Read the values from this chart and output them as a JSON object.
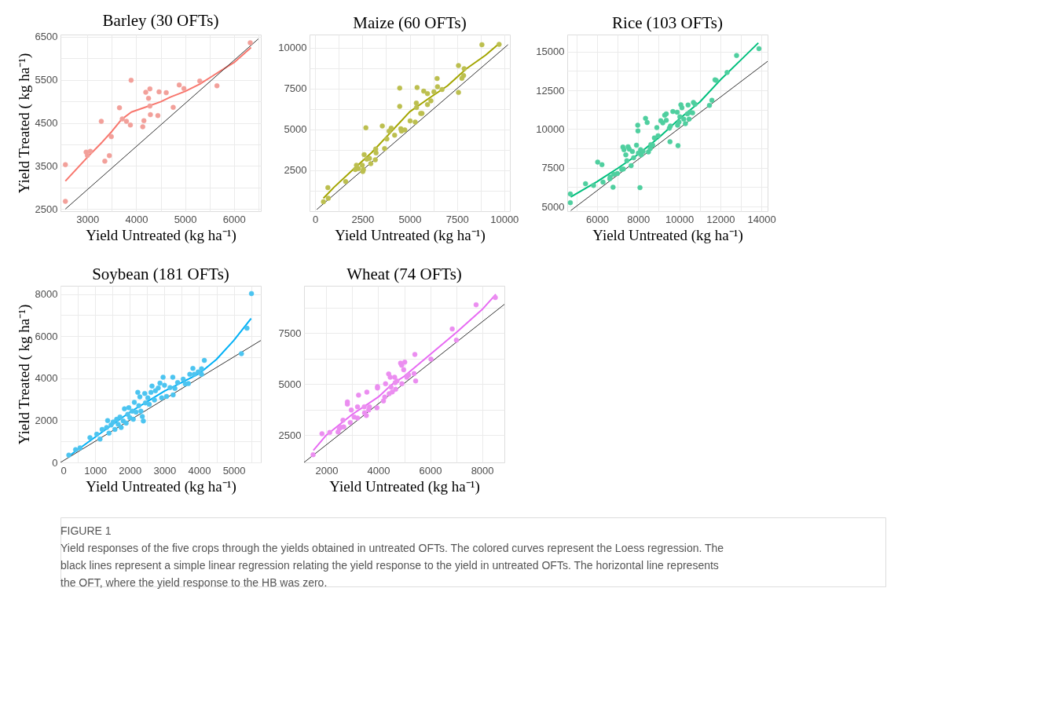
{
  "chart_data": [
    {
      "type": "scatter",
      "title": "Barley (30 OFTs)",
      "xlabel": "Yield Untreated (kg ha⁻¹)",
      "ylabel": "Yield Treated ( kg ha⁻¹)",
      "xlim": [
        2450,
        6550
      ],
      "ylim": [
        2450,
        6550
      ],
      "xticks": [
        3000,
        {
          "value": 3500,
          "label": null
        },
        4000,
        {
          "value": 4500,
          "label": null
        },
        5000,
        {
          "value": 5500,
          "label": null
        },
        6000,
        {
          "value": 6500,
          "label": null
        }
      ],
      "yticks": [
        2500,
        {
          "value": 3000,
          "label": null
        },
        3500,
        {
          "value": 4000,
          "label": null
        },
        4500,
        {
          "value": 5000,
          "label": null
        },
        5500,
        {
          "value": 6000,
          "label": null
        },
        6500
      ],
      "grid": true,
      "line_style": "solid",
      "series": [
        {
          "type": "scatter",
          "marker": "circle",
          "color": "#f2a09a",
          "x": [
            2550,
            2550,
            2975,
            3000,
            3060,
            3285,
            3357,
            3450,
            3490,
            3657,
            3714,
            3800,
            3880,
            3895,
            4133,
            4157,
            4195,
            4252,
            4280,
            4280,
            4290,
            4443,
            4467,
            4614,
            4757,
            4880,
            4976,
            5300,
            5652,
            6333
          ],
          "values": [
            3530,
            2680,
            3820,
            3745,
            3840,
            4535,
            3610,
            3740,
            4180,
            4850,
            4590,
            4535,
            4450,
            5490,
            4410,
            4550,
            5210,
            5070,
            5290,
            4890,
            4690,
            4670,
            5220,
            5200,
            4860,
            5380,
            5295,
            5470,
            5360,
            6360
          ]
        },
        {
          "type": "line",
          "color": "#f8766d",
          "x": [
            2550,
            3000,
            3300,
            3500,
            3700,
            3900,
            4200,
            4500,
            4700,
            5000,
            5300,
            5550,
            5800,
            6000,
            6350
          ],
          "values": [
            3150,
            3700,
            4050,
            4300,
            4580,
            4750,
            4870,
            4990,
            5100,
            5230,
            5400,
            5580,
            5760,
            5900,
            6250
          ]
        },
        {
          "type": "line",
          "color": "#333333",
          "x": [
            2550,
            6500
          ],
          "values": [
            2500,
            6450
          ]
        }
      ]
    },
    {
      "type": "scatter",
      "title": "Maize (60 OFTs)",
      "xlabel": "Yield Untreated (kg ha⁻¹)",
      "xlim": [
        -300,
        10300
      ],
      "ylim": [
        0,
        10800
      ],
      "xticks": [
        0,
        {
          "value": 1250,
          "label": null
        },
        2500,
        {
          "value": 3750,
          "label": null
        },
        5000,
        {
          "value": 6250,
          "label": null
        },
        7500,
        {
          "value": 8750,
          "label": null
        },
        10000
      ],
      "yticks": [
        {
          "value": 1250,
          "label": null
        },
        2500,
        {
          "value": 3750,
          "label": null
        },
        5000,
        {
          "value": 6250,
          "label": null
        },
        7500,
        {
          "value": 8750,
          "label": null
        },
        10000
      ],
      "grid": true,
      "line_style": "solid",
      "series": [
        {
          "type": "scatter",
          "marker": "circle",
          "color": "#bcbf4f",
          "x": [
            435,
            670,
            690,
            1610,
            2120,
            2180,
            2280,
            2490,
            2520,
            2550,
            2590,
            2680,
            2730,
            2870,
            2940,
            3180,
            3200,
            3220,
            3550,
            3670,
            3790,
            3910,
            4020,
            4200,
            4470,
            4470,
            4530,
            4560,
            4740,
            5020,
            5290,
            5350,
            5360,
            5390,
            5580,
            5650,
            5740,
            5940,
            5940,
            6120,
            6280,
            6450,
            6470,
            6710,
            7580,
            7580,
            7760,
            7850,
            7880,
            8820,
            9730
          ],
          "values": [
            580,
            1440,
            790,
            1810,
            2550,
            2810,
            2600,
            2810,
            2430,
            2540,
            3460,
            5100,
            3180,
            3230,
            2910,
            3140,
            3800,
            3560,
            5210,
            3830,
            4420,
            4900,
            5080,
            4650,
            7530,
            6410,
            5040,
            4900,
            4970,
            5520,
            5450,
            6610,
            6340,
            7560,
            5980,
            5980,
            7340,
            6520,
            7190,
            6750,
            7300,
            8110,
            7610,
            7440,
            8900,
            7260,
            8120,
            8290,
            8710,
            10180,
            10200
          ]
        },
        {
          "type": "line",
          "color": "#a3a500",
          "x": [
            435,
            1000,
            2000,
            3000,
            4000,
            5000,
            6000,
            7000,
            8000,
            9000,
            9730
          ],
          "values": [
            790,
            1470,
            2540,
            3600,
            4830,
            6080,
            6890,
            7670,
            8710,
            9530,
            10250
          ]
        },
        {
          "type": "line",
          "color": "#333333",
          "x": [
            80,
            10200
          ],
          "values": [
            100,
            10180
          ]
        }
      ]
    },
    {
      "type": "scatter",
      "title": "Rice (103 OFTs)",
      "xlabel": "Yield Untreated (kg ha⁻¹)",
      "xlim": [
        4550,
        14300
      ],
      "ylim": [
        4700,
        16100
      ],
      "xticks": [
        {
          "value": 5000,
          "label": null
        },
        6000,
        {
          "value": 7000,
          "label": null
        },
        8000,
        {
          "value": 9000,
          "label": null
        },
        10000,
        {
          "value": 11000,
          "label": null
        },
        12000,
        {
          "value": 13000,
          "label": null
        },
        14000
      ],
      "yticks": [
        5000,
        {
          "value": 6250,
          "label": null
        },
        7500,
        {
          "value": 8750,
          "label": null
        },
        10000,
        {
          "value": 11250,
          "label": null
        },
        12500,
        {
          "value": 13750,
          "label": null
        },
        15000
      ],
      "grid": true,
      "line_style": "solid",
      "series": [
        {
          "type": "scatter",
          "marker": "circle",
          "color": "#4fcf9f",
          "x": [
            4700,
            4700,
            5440,
            5830,
            6030,
            6240,
            6290,
            6620,
            6640,
            6780,
            6810,
            6990,
            7200,
            7280,
            7260,
            7310,
            7400,
            7450,
            7510,
            7570,
            7660,
            7720,
            7780,
            7920,
            7980,
            7990,
            8010,
            8090,
            8120,
            8150,
            8240,
            8360,
            8440,
            8500,
            8590,
            8620,
            8710,
            8790,
            8910,
            8970,
            9100,
            9200,
            9290,
            9370,
            9370,
            9520,
            9550,
            9570,
            9690,
            9900,
            9920,
            9940,
            9990,
            10030,
            10080,
            10130,
            10220,
            10300,
            10400,
            10430,
            10480,
            10530,
            10650,
            10690,
            10770,
            11470,
            11590,
            11740,
            11800,
            12330,
            12790,
            13880
          ],
          "values": [
            5810,
            5250,
            6470,
            6360,
            7870,
            7700,
            6580,
            6790,
            6910,
            6250,
            7080,
            7130,
            7400,
            7420,
            8840,
            8670,
            8340,
            7960,
            8860,
            8700,
            7640,
            8550,
            8150,
            8960,
            10250,
            9880,
            8450,
            6220,
            8670,
            8330,
            8550,
            10690,
            10420,
            8520,
            8740,
            9000,
            8960,
            9430,
            10090,
            9570,
            10540,
            10400,
            10890,
            10980,
            10570,
            10060,
            9180,
            10200,
            11130,
            11090,
            10250,
            8930,
            10450,
            10790,
            11570,
            11380,
            10640,
            10350,
            10980,
            11550,
            10640,
            11090,
            11040,
            11720,
            11600,
            11530,
            11860,
            13180,
            13140,
            13650,
            14750,
            15190
          ]
        },
        {
          "type": "line",
          "color": "#00bf7d",
          "x": [
            4720,
            6000,
            7000,
            8000,
            9000,
            10000,
            11000,
            12000,
            13000,
            13850
          ],
          "values": [
            5620,
            6610,
            7460,
            8370,
            9440,
            10650,
            11740,
            13170,
            14460,
            15560
          ]
        },
        {
          "type": "line",
          "color": "#333333",
          "x": [
            4720,
            14300
          ],
          "values": [
            4740,
            14370
          ]
        }
      ]
    },
    {
      "type": "scatter",
      "title": "Soybean (181 OFTs)",
      "xlabel": "Yield Untreated (kg ha⁻¹)",
      "ylabel": "Yield Treated ( kg ha⁻¹)",
      "xlim": [
        0,
        5780
      ],
      "ylim": [
        0,
        8400
      ],
      "xticks": [
        0,
        {
          "value": 500,
          "label": null
        },
        1000,
        {
          "value": 1500,
          "label": null
        },
        2000,
        {
          "value": 2500,
          "label": null
        },
        3000,
        {
          "value": 3500,
          "label": null
        },
        4000,
        {
          "value": 4500,
          "label": null
        },
        5000,
        {
          "value": 5500,
          "label": null
        }
      ],
      "yticks": [
        0,
        {
          "value": 1000,
          "label": null
        },
        2000,
        {
          "value": 3000,
          "label": null
        },
        4000,
        {
          "value": 5000,
          "label": null
        },
        6000,
        {
          "value": 7000,
          "label": null
        },
        8000
      ],
      "grid": true,
      "line_style": "solid",
      "series": [
        {
          "type": "scatter",
          "marker": "circle",
          "color": "#4cc4f0",
          "x": [
            240,
            435,
            565,
            850,
            1045,
            1140,
            1200,
            1330,
            1360,
            1400,
            1460,
            1520,
            1570,
            1620,
            1665,
            1715,
            1750,
            1810,
            1845,
            1895,
            1940,
            1970,
            2000,
            2070,
            2100,
            2130,
            2180,
            2230,
            2260,
            2290,
            2320,
            2360,
            2390,
            2430,
            2450,
            2520,
            2560,
            2610,
            2640,
            2710,
            2740,
            2820,
            2870,
            2920,
            2960,
            3000,
            3060,
            3160,
            3240,
            3250,
            3300,
            3380,
            3540,
            3600,
            3690,
            3730,
            3820,
            3860,
            3970,
            4070,
            4070,
            4150,
            5220,
            5380,
            5510
          ],
          "values": [
            350,
            610,
            690,
            1180,
            1340,
            1110,
            1570,
            1660,
            1990,
            1390,
            1780,
            1920,
            1570,
            2050,
            1810,
            2160,
            1660,
            1970,
            2550,
            1870,
            2290,
            2600,
            2130,
            2440,
            2050,
            2860,
            2390,
            3330,
            2700,
            3120,
            2440,
            2180,
            1970,
            3280,
            2830,
            3070,
            2760,
            3330,
            3630,
            2970,
            3410,
            3540,
            3770,
            3070,
            4050,
            3670,
            3140,
            3560,
            4050,
            3210,
            3520,
            3800,
            3960,
            3730,
            3750,
            4190,
            4470,
            4190,
            4300,
            4450,
            4190,
            4850,
            5170,
            6380,
            8030
          ]
        },
        {
          "type": "line",
          "color": "#00b0f6",
          "x": [
            240,
            1000,
            2000,
            3000,
            3500,
            4000,
            4500,
            5000,
            5500
          ],
          "values": [
            300,
            1205,
            2390,
            3390,
            3800,
            4220,
            4900,
            5800,
            6845
          ]
        },
        {
          "type": "line",
          "color": "#333333",
          "x": [
            0,
            5780
          ],
          "values": [
            0,
            5800
          ]
        }
      ]
    },
    {
      "type": "scatter",
      "title": "Wheat (74 OFTs)",
      "xlabel": "Yield Untreated (kg ha⁻¹)",
      "xlim": [
        1140,
        8860
      ],
      "ylim": [
        1160,
        9830
      ],
      "xticks": [
        2000,
        {
          "value": 3000,
          "label": null
        },
        4000,
        {
          "value": 5000,
          "label": null
        },
        6000,
        {
          "value": 7000,
          "label": null
        },
        8000
      ],
      "yticks": [
        2500,
        {
          "value": 3750,
          "label": null
        },
        5000,
        {
          "value": 6250,
          "label": null
        },
        7500,
        {
          "value": 8750,
          "label": null
        }
      ],
      "grid": true,
      "line_style": "solid",
      "annotations": [
        "FIGURE 1",
        "Yield responses of the five crops through the yields obtained in untreated OFTs. The colored curves represent the Loess regression. The black lines represent a simple linear regression relating the yield response to the yield in untreated OFTs. The horizontal line represents the OFT, where the yield response to the HB was zero."
      ],
      "series": [
        {
          "type": "scatter",
          "marker": "circle",
          "color": "#eb8ef0",
          "x": [
            1490,
            1830,
            2130,
            2450,
            2500,
            2560,
            2640,
            2670,
            2810,
            2810,
            2920,
            2960,
            3070,
            3200,
            3200,
            3240,
            3460,
            3470,
            3560,
            3540,
            3630,
            3660,
            3950,
            3970,
            3970,
            4200,
            4250,
            4280,
            4400,
            4420,
            4460,
            4490,
            4540,
            4630,
            4650,
            4670,
            4720,
            4860,
            4900,
            4910,
            4980,
            5020,
            5100,
            5170,
            5380,
            5410,
            5440,
            6030,
            6850,
            7010,
            7770,
            8510
          ],
          "values": [
            1540,
            2570,
            2630,
            2650,
            2820,
            2880,
            3230,
            2900,
            4130,
            4020,
            3120,
            3730,
            3390,
            3890,
            3340,
            4460,
            3890,
            3590,
            4610,
            3460,
            3730,
            3890,
            3840,
            4880,
            4810,
            4180,
            4370,
            5020,
            5500,
            4530,
            5340,
            4860,
            4620,
            5340,
            5070,
            4750,
            5160,
            6030,
            5930,
            5020,
            5710,
            6080,
            5340,
            5450,
            5520,
            6460,
            5160,
            6230,
            7710,
            7160,
            8900,
            9250
          ]
        },
        {
          "type": "line",
          "color": "#e76bf3",
          "x": [
            1500,
            2000,
            3000,
            4000,
            4500,
            5000,
            6000,
            7000,
            8000,
            8530
          ],
          "values": [
            1750,
            2500,
            3520,
            4370,
            4960,
            5390,
            6460,
            7530,
            8660,
            9410
          ]
        },
        {
          "type": "line",
          "color": "#333333",
          "x": [
            1140,
            8860
          ],
          "values": [
            1160,
            8920
          ]
        }
      ]
    }
  ]
}
